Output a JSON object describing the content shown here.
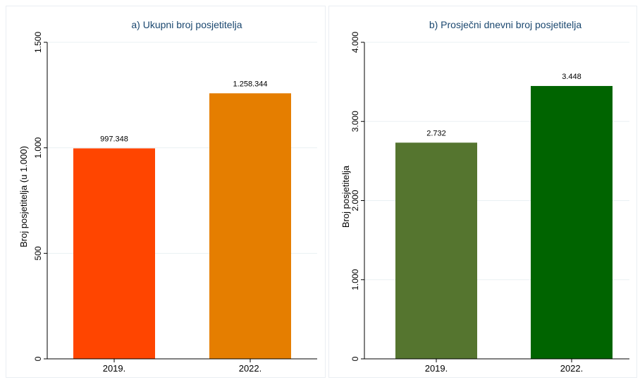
{
  "chart_data": [
    {
      "type": "bar",
      "title": "a) Ukupni broj posjetitelja",
      "ylabel": "Broj posjetitelja (u 1.000)",
      "xlabel": "",
      "categories": [
        "2019.",
        "2022."
      ],
      "values": [
        997.348,
        1258.344
      ],
      "value_labels": [
        "997.348",
        "1.258.344"
      ],
      "colors": [
        "#ff4500",
        "#e57e00"
      ],
      "ylim": [
        0,
        1500
      ],
      "yticks": [
        0,
        500,
        1000,
        1500
      ],
      "ytick_labels": [
        "0",
        "500",
        "1.000",
        "1.500"
      ],
      "grid": true
    },
    {
      "type": "bar",
      "title": "b) Prosječni dnevni broj posjetitelja",
      "ylabel": "Broj posjetitelja",
      "xlabel": "",
      "categories": [
        "2019.",
        "2022."
      ],
      "values": [
        2732,
        3448
      ],
      "value_labels": [
        "2.732",
        "3.448"
      ],
      "colors": [
        "#55752f",
        "#006400"
      ],
      "ylim": [
        0,
        4000
      ],
      "yticks": [
        0,
        1000,
        2000,
        3000,
        4000
      ],
      "ytick_labels": [
        "0",
        "1.000",
        "2.000",
        "3.000",
        "4.000"
      ],
      "grid": true
    }
  ]
}
